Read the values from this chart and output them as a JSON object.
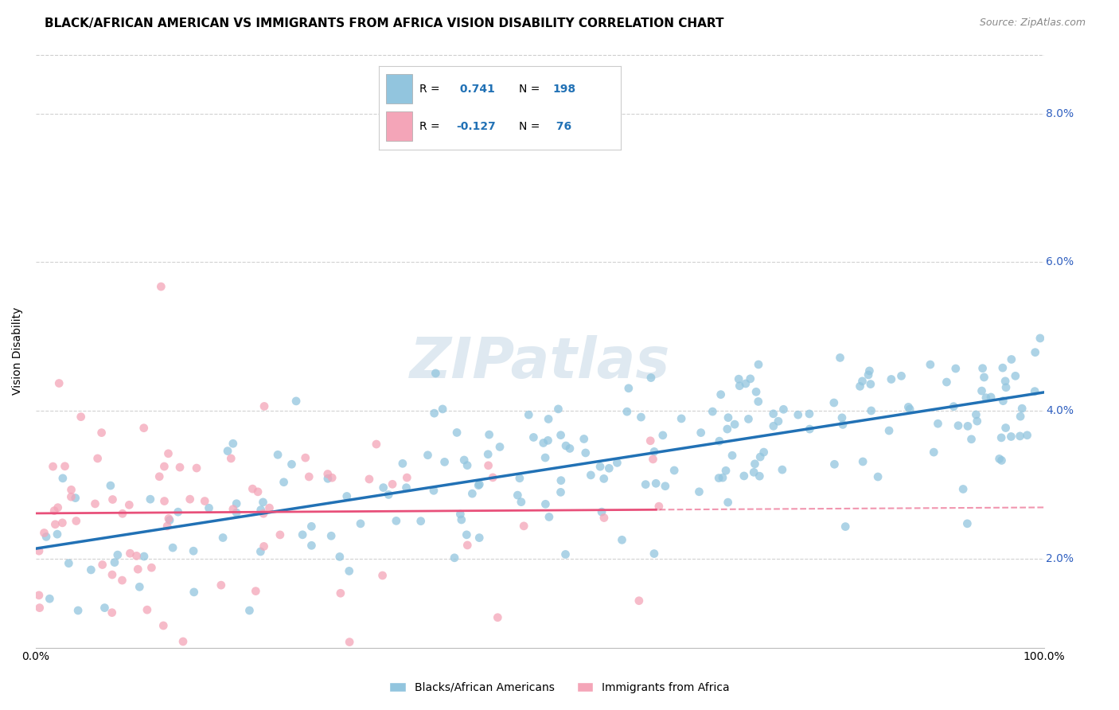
{
  "title": "BLACK/AFRICAN AMERICAN VS IMMIGRANTS FROM AFRICA VISION DISABILITY CORRELATION CHART",
  "source": "Source: ZipAtlas.com",
  "ylabel": "Vision Disability",
  "watermark": "ZIPatlas",
  "xlim": [
    0.0,
    1.0
  ],
  "ylim": [
    0.008,
    0.088
  ],
  "yticks": [
    0.02,
    0.04,
    0.06,
    0.08
  ],
  "ytick_labels": [
    "2.0%",
    "4.0%",
    "6.0%",
    "8.0%"
  ],
  "blue_R": 0.741,
  "blue_N": 198,
  "pink_R": -0.127,
  "pink_N": 76,
  "blue_color": "#92c5de",
  "pink_color": "#f4a5b8",
  "blue_line_color": "#2171b5",
  "pink_line_color": "#e8507a",
  "legend_label_blue": "Blacks/African Americans",
  "legend_label_pink": "Immigrants from Africa",
  "title_fontsize": 11,
  "axis_label_fontsize": 10,
  "tick_fontsize": 10,
  "source_fontsize": 9,
  "watermark_fontsize": 52,
  "watermark_color": "#b8cfe0",
  "watermark_alpha": 0.45,
  "grid_color": "#cccccc",
  "right_tick_color": "#3060c0",
  "blue_seed": 12,
  "pink_seed": 55
}
